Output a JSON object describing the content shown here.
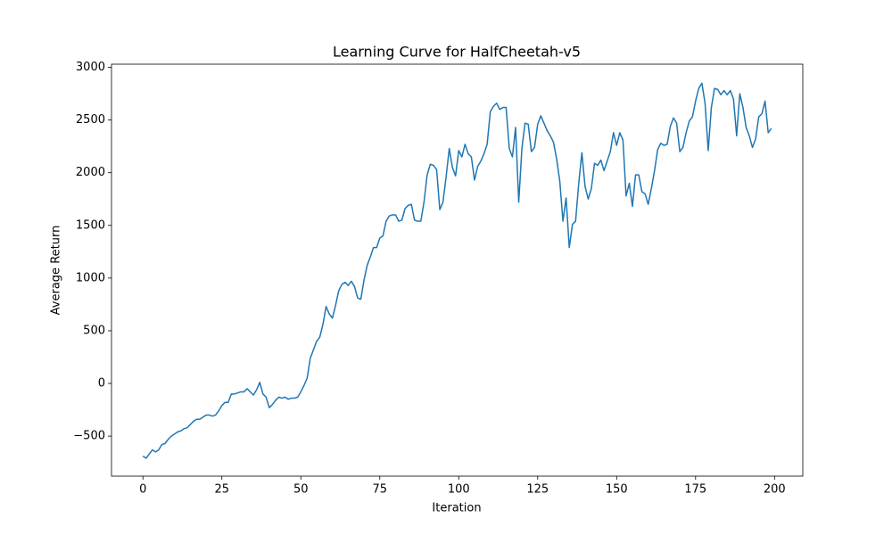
{
  "chart_data": {
    "type": "line",
    "title": "Learning Curve for HalfCheetah-v5",
    "xlabel": "Iteration",
    "ylabel": "Average Return",
    "color": "#1f77b4",
    "x": [
      0,
      1,
      2,
      3,
      4,
      5,
      6,
      7,
      8,
      9,
      10,
      11,
      12,
      13,
      14,
      15,
      16,
      17,
      18,
      19,
      20,
      21,
      22,
      23,
      24,
      25,
      26,
      27,
      28,
      29,
      30,
      31,
      32,
      33,
      34,
      35,
      36,
      37,
      38,
      39,
      40,
      41,
      42,
      43,
      44,
      45,
      46,
      47,
      48,
      49,
      50,
      51,
      52,
      53,
      54,
      55,
      56,
      57,
      58,
      59,
      60,
      61,
      62,
      63,
      64,
      65,
      66,
      67,
      68,
      69,
      70,
      71,
      72,
      73,
      74,
      75,
      76,
      77,
      78,
      79,
      80,
      81,
      82,
      83,
      84,
      85,
      86,
      87,
      88,
      89,
      90,
      91,
      92,
      93,
      94,
      95,
      96,
      97,
      98,
      99,
      100,
      101,
      102,
      103,
      104,
      105,
      106,
      107,
      108,
      109,
      110,
      111,
      112,
      113,
      114,
      115,
      116,
      117,
      118,
      119,
      120,
      121,
      122,
      123,
      124,
      125,
      126,
      127,
      128,
      129,
      130,
      131,
      132,
      133,
      134,
      135,
      136,
      137,
      138,
      139,
      140,
      141,
      142,
      143,
      144,
      145,
      146,
      147,
      148,
      149,
      150,
      151,
      152,
      153,
      154,
      155,
      156,
      157,
      158,
      159,
      160,
      161,
      162,
      163,
      164,
      165,
      166,
      167,
      168,
      169,
      170,
      171,
      172,
      173,
      174,
      175,
      176,
      177,
      178,
      179,
      180,
      181,
      182,
      183,
      184,
      185,
      186,
      187,
      188,
      189,
      190,
      191,
      192,
      193,
      194,
      195,
      196,
      197,
      198,
      199
    ],
    "values": [
      -690,
      -710,
      -670,
      -630,
      -650,
      -630,
      -580,
      -570,
      -530,
      -500,
      -480,
      -460,
      -450,
      -430,
      -420,
      -390,
      -360,
      -340,
      -340,
      -320,
      -300,
      -300,
      -310,
      -300,
      -260,
      -210,
      -180,
      -180,
      -100,
      -100,
      -90,
      -80,
      -80,
      -50,
      -80,
      -110,
      -60,
      10,
      -100,
      -130,
      -230,
      -200,
      -160,
      -130,
      -140,
      -130,
      -150,
      -140,
      -140,
      -130,
      -80,
      -20,
      50,
      240,
      320,
      400,
      440,
      560,
      730,
      660,
      620,
      740,
      880,
      940,
      960,
      930,
      970,
      920,
      810,
      800,
      980,
      1120,
      1200,
      1290,
      1290,
      1380,
      1400,
      1540,
      1590,
      1600,
      1600,
      1540,
      1550,
      1660,
      1690,
      1700,
      1550,
      1540,
      1540,
      1720,
      1980,
      2080,
      2070,
      2030,
      1650,
      1720,
      1960,
      2230,
      2050,
      1970,
      2210,
      2150,
      2270,
      2180,
      2150,
      1930,
      2060,
      2110,
      2180,
      2270,
      2580,
      2630,
      2660,
      2600,
      2620,
      2620,
      2230,
      2150,
      2430,
      1720,
      2230,
      2470,
      2460,
      2200,
      2240,
      2460,
      2540,
      2470,
      2400,
      2350,
      2290,
      2130,
      1920,
      1540,
      1760,
      1290,
      1510,
      1540,
      1900,
      2190,
      1870,
      1750,
      1850,
      2090,
      2070,
      2120,
      2020,
      2110,
      2200,
      2380,
      2260,
      2380,
      2310,
      1780,
      1900,
      1680,
      1980,
      1980,
      1820,
      1800,
      1700,
      1850,
      2020,
      2220,
      2280,
      2260,
      2270,
      2440,
      2520,
      2470,
      2200,
      2240,
      2380,
      2490,
      2530,
      2680,
      2800,
      2850,
      2660,
      2210,
      2620,
      2800,
      2790,
      2740,
      2780,
      2740,
      2780,
      2700,
      2350,
      2750,
      2620,
      2430,
      2350,
      2240,
      2320,
      2530,
      2560,
      2680,
      2380,
      2420
    ],
    "xlim": [
      -9.95,
      208.95
    ],
    "ylim": [
      -880,
      3030
    ],
    "xticks": [
      0,
      25,
      50,
      75,
      100,
      125,
      150,
      175,
      200
    ],
    "yticks": [
      {
        "value": -500,
        "label": "−500"
      },
      0,
      500,
      1000,
      1500,
      2000,
      2500,
      3000
    ],
    "grid": false
  }
}
